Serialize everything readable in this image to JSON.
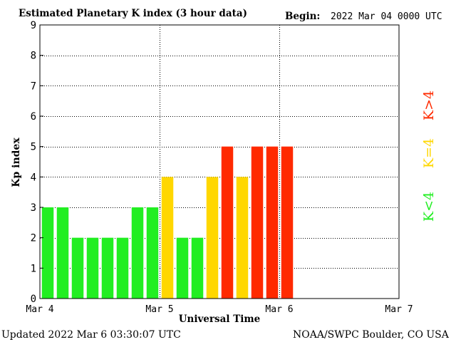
{
  "header": {
    "title": "Estimated Planetary K index (3 hour data)",
    "begin_label": "Begin:",
    "begin_value": "2022 Mar 04 0000 UTC"
  },
  "footer": {
    "updated": "Updated 2022 Mar  6 03:30:07 UTC",
    "source": "NOAA/SWPC Boulder, CO USA"
  },
  "legend": [
    {
      "label": "K<4",
      "color": "#22ee22"
    },
    {
      "label": "K=4",
      "color": "#ffd700"
    },
    {
      "label": "K>4",
      "color": "#ff2a00"
    }
  ],
  "chart_data": {
    "type": "bar",
    "title": "Estimated Planetary K index (3 hour data)",
    "xlabel": "Universal Time",
    "ylabel": "Kp index",
    "ylim": [
      0,
      9
    ],
    "yticks": [
      0,
      1,
      2,
      3,
      4,
      5,
      6,
      7,
      8,
      9
    ],
    "x_tick_labels": [
      "Mar 4",
      "Mar 5",
      "Mar 6",
      "Mar 7"
    ],
    "slots_total": 24,
    "grid": true,
    "colors": {
      "below4": "#22ee22",
      "equal4": "#ffd700",
      "above4": "#ff2a00"
    },
    "values": [
      3,
      3,
      2,
      2,
      2,
      2,
      3,
      3,
      4,
      2,
      2,
      4,
      5,
      4,
      5,
      5,
      5
    ]
  }
}
